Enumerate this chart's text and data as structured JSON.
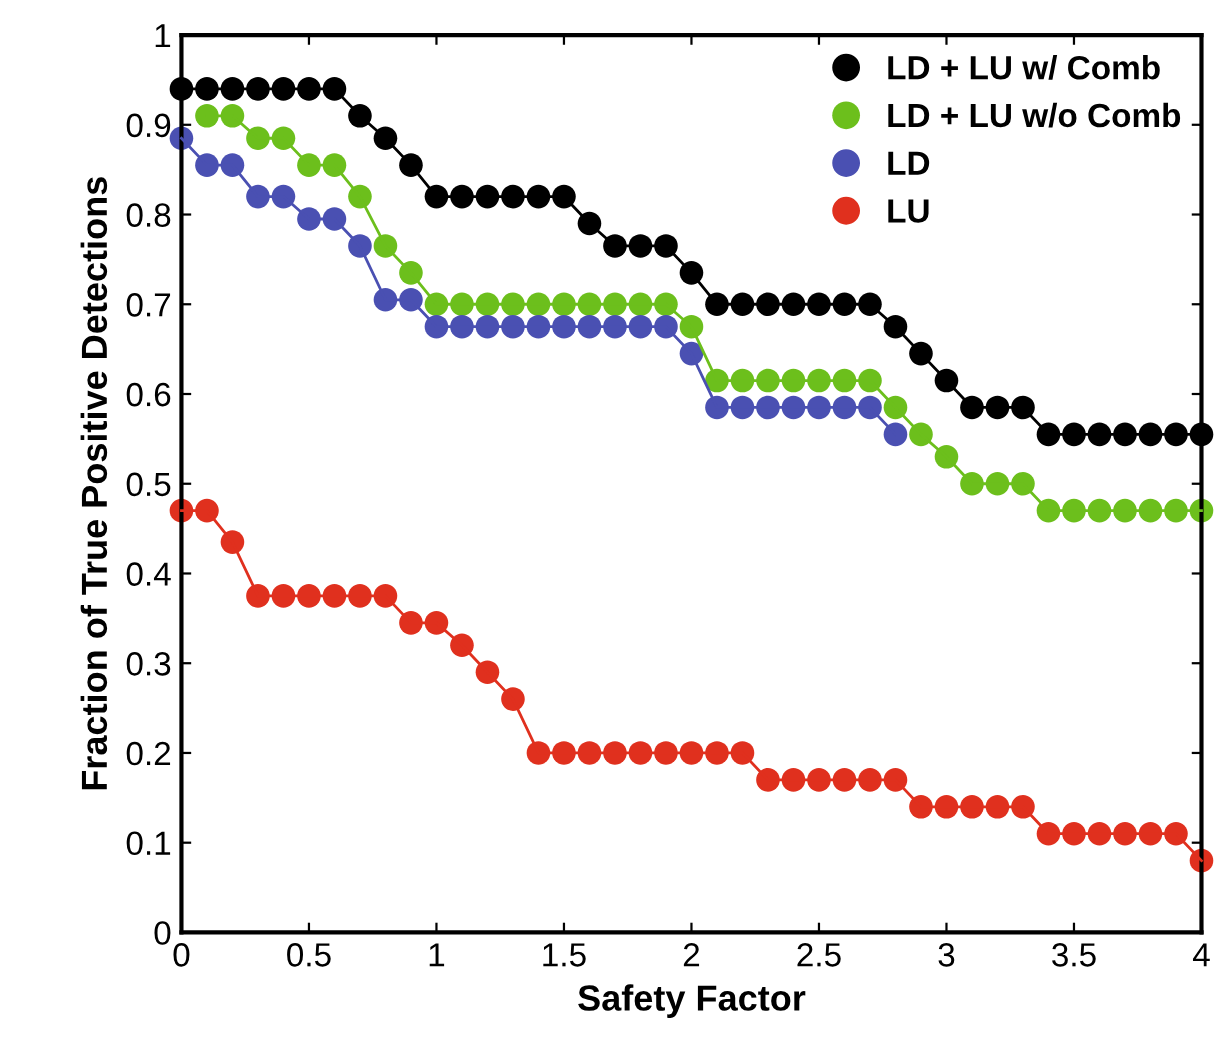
{
  "chart_data": {
    "type": "line",
    "xlabel": "Safety Factor",
    "ylabel": "Fraction of True Positive Detections",
    "x": [
      0,
      0.1,
      0.2,
      0.3,
      0.4,
      0.5,
      0.6,
      0.7,
      0.8,
      0.9,
      1.0,
      1.1,
      1.2,
      1.3,
      1.4,
      1.5,
      1.6,
      1.7,
      1.8,
      1.9,
      2.0,
      2.1,
      2.2,
      2.3,
      2.4,
      2.5,
      2.6,
      2.7,
      2.8,
      2.9,
      3.0,
      3.1,
      3.2,
      3.3,
      3.4,
      3.5,
      3.6,
      3.7,
      3.8,
      3.9,
      4.0
    ],
    "series": [
      {
        "name": "LD + LU w/ Comb",
        "color": "#000000",
        "values": [
          0.94,
          0.94,
          0.94,
          0.94,
          0.94,
          0.94,
          0.94,
          0.91,
          0.885,
          0.855,
          0.82,
          0.82,
          0.82,
          0.82,
          0.82,
          0.82,
          0.79,
          0.765,
          0.765,
          0.765,
          0.735,
          0.7,
          0.7,
          0.7,
          0.7,
          0.7,
          0.7,
          0.7,
          0.675,
          0.645,
          0.615,
          0.585,
          0.585,
          0.585,
          0.555,
          0.555,
          0.555,
          0.555,
          0.555,
          0.555,
          0.555
        ]
      },
      {
        "name": "LD + LU w/o Comb",
        "color": "#6cbf1c",
        "values": [
          null,
          0.91,
          0.91,
          0.885,
          0.885,
          0.855,
          0.855,
          0.82,
          0.765,
          0.735,
          0.7,
          0.7,
          0.7,
          0.7,
          0.7,
          0.7,
          0.7,
          0.7,
          0.7,
          0.7,
          0.675,
          0.615,
          0.615,
          0.615,
          0.615,
          0.615,
          0.615,
          0.615,
          0.585,
          0.555,
          0.53,
          0.5,
          0.5,
          0.5,
          0.47,
          0.47,
          0.47,
          0.47,
          0.47,
          0.47,
          0.47
        ]
      },
      {
        "name": "LD",
        "color": "#4a50b2",
        "values": [
          0.885,
          0.855,
          0.855,
          0.82,
          0.82,
          0.795,
          0.795,
          0.765,
          0.705,
          0.705,
          0.675,
          0.675,
          0.675,
          0.675,
          0.675,
          0.675,
          0.675,
          0.675,
          0.675,
          0.675,
          0.645,
          0.585,
          0.585,
          0.585,
          0.585,
          0.585,
          0.585,
          0.585,
          0.555,
          null,
          null,
          null,
          null,
          null,
          null,
          null,
          null,
          null,
          null,
          null,
          null
        ]
      },
      {
        "name": "LU",
        "color": "#e0301e",
        "values": [
          0.47,
          0.47,
          0.435,
          0.375,
          0.375,
          0.375,
          0.375,
          0.375,
          0.375,
          0.345,
          0.345,
          0.32,
          0.29,
          0.26,
          0.2,
          0.2,
          0.2,
          0.2,
          0.2,
          0.2,
          0.2,
          0.2,
          0.2,
          0.17,
          0.17,
          0.17,
          0.17,
          0.17,
          0.17,
          0.14,
          0.14,
          0.14,
          0.14,
          0.14,
          0.11,
          0.11,
          0.11,
          0.11,
          0.11,
          0.11,
          0.08
        ]
      }
    ],
    "xlim": [
      0,
      4
    ],
    "xticks": [
      0,
      0.5,
      1,
      1.5,
      2,
      2.5,
      3,
      3.5,
      4
    ],
    "ylim": [
      0,
      1
    ],
    "yticks": [
      0,
      0.1,
      0.2,
      0.3,
      0.4,
      0.5,
      0.6,
      0.7,
      0.8,
      0.9,
      1
    ],
    "marker": "circle",
    "line_style": "solid",
    "legend": "top right",
    "grid": false
  }
}
